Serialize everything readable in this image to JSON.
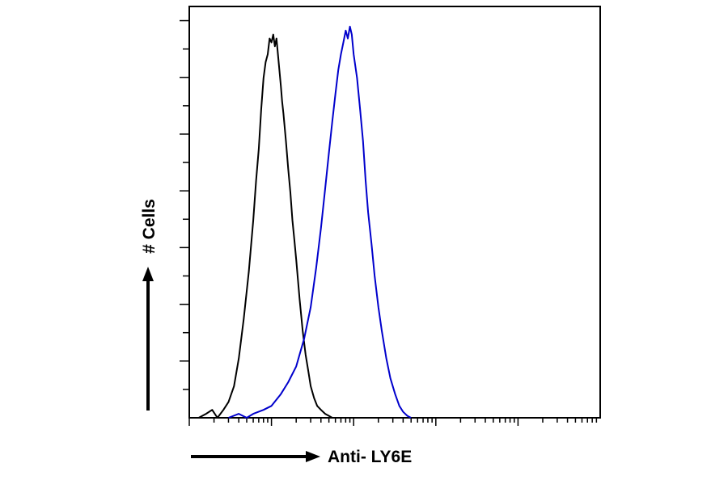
{
  "chart_data": {
    "type": "line",
    "xlabel": "Anti- LY6E",
    "ylabel": "# Cells",
    "x_scale": "log",
    "xlim": [
      1,
      100000
    ],
    "ylim": [
      0,
      100
    ],
    "grid": false,
    "colors": {
      "control": "#000000",
      "stained": "#0000cc",
      "axis": "#000000"
    },
    "series": [
      {
        "color": "#000000",
        "x": [
          1.3,
          1.6,
          1.9,
          2.2,
          2.6,
          3.0,
          3.5,
          4.0,
          4.6,
          5.3,
          6.0,
          6.5,
          7.0,
          7.5,
          8.0,
          8.5,
          9.0,
          9.5,
          10,
          10.5,
          11,
          11.5,
          12,
          12.5,
          13,
          13.5,
          14,
          15,
          16,
          17,
          18,
          19,
          20,
          22,
          24,
          26,
          28,
          30,
          33,
          36,
          40,
          45,
          50,
          55,
          60
        ],
        "y": [
          0,
          1,
          2,
          0,
          2,
          4,
          8,
          15,
          25,
          37,
          50,
          60,
          68,
          78,
          86,
          90,
          92,
          96,
          95,
          97,
          94,
          96,
          92,
          88,
          84,
          80,
          77,
          70,
          63,
          57,
          50,
          45,
          40,
          30,
          22,
          16,
          12,
          8,
          5,
          3,
          2,
          1,
          0.5,
          0,
          0
        ]
      },
      {
        "color": "#0000cc",
        "x": [
          3,
          4,
          5,
          6,
          8,
          10,
          13,
          16,
          20,
          25,
          30,
          35,
          40,
          45,
          50,
          55,
          60,
          65,
          70,
          75,
          80,
          85,
          90,
          95,
          100,
          110,
          120,
          130,
          140,
          150,
          165,
          180,
          200,
          220,
          250,
          280,
          320,
          360,
          400,
          450,
          500
        ],
        "y": [
          0,
          1,
          0,
          1,
          2,
          3,
          6,
          9,
          13,
          20,
          28,
          38,
          48,
          58,
          67,
          75,
          82,
          88,
          92,
          95,
          98,
          96,
          99,
          97,
          92,
          86,
          78,
          70,
          60,
          52,
          44,
          36,
          28,
          22,
          15,
          10,
          6,
          3,
          1.5,
          0.5,
          0
        ]
      }
    ]
  }
}
